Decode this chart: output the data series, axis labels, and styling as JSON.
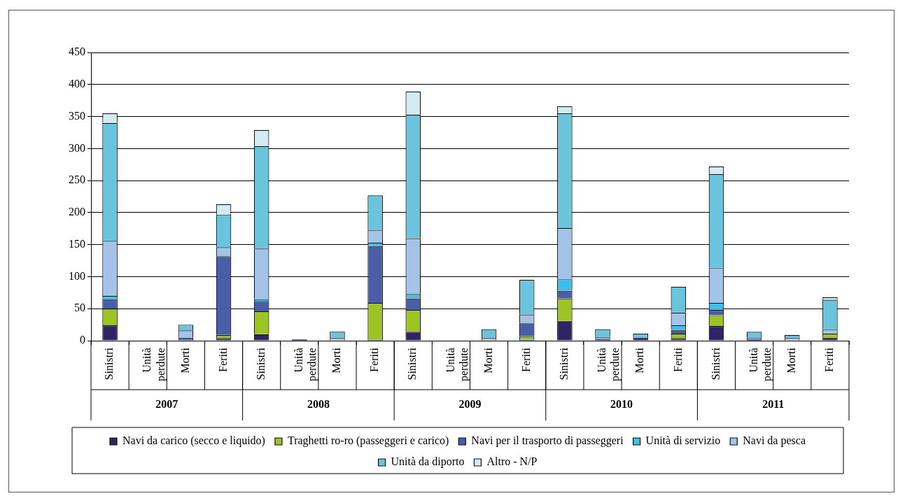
{
  "chart_data": {
    "type": "bar",
    "stacked": true,
    "categories": [
      "Sinistri",
      "Unità perdute",
      "Morti",
      "Feriti",
      "Sinistri",
      "Unità perdute",
      "Morti",
      "Feriti",
      "Sinistri",
      "Unità perdute",
      "Morti",
      "Feriti",
      "Sinistri",
      "Unità perdute",
      "Morti",
      "Feriti",
      "Sinistri",
      "Unità perdute",
      "Morti",
      "Feriti"
    ],
    "annotations": [
      "2007",
      "2008",
      "2009",
      "2010",
      "2011"
    ],
    "series": [
      {
        "name": "Navi da carico (secco e liquido)",
        "color": "#2e2466",
        "values": [
          24,
          0,
          0,
          4,
          10,
          2,
          0,
          1,
          14,
          0,
          0,
          1,
          31,
          1,
          5,
          4,
          23,
          2,
          0,
          5
        ]
      },
      {
        "name": "Traghetti ro-ro (passeggeri e carico)",
        "color": "#9bc424",
        "values": [
          26,
          0,
          0,
          5,
          36,
          0,
          0,
          58,
          34,
          0,
          0,
          6,
          35,
          0,
          0,
          7,
          17,
          0,
          0,
          6
        ]
      },
      {
        "name": "Navi per il trasporto di passeggeri",
        "color": "#4a5ea8",
        "values": [
          15,
          0,
          5,
          123,
          16,
          0,
          0,
          89,
          18,
          0,
          0,
          21,
          12,
          2,
          0,
          6,
          8,
          0,
          0,
          0
        ]
      },
      {
        "name": "Unità di servizio",
        "color": "#3cc0ea",
        "values": [
          5,
          0,
          0,
          0,
          3,
          0,
          0,
          5,
          7,
          0,
          0,
          0,
          18,
          0,
          0,
          7,
          11,
          0,
          0,
          0
        ]
      },
      {
        "name": "Navi da pesca",
        "color": "#a3c4e8",
        "values": [
          86,
          0,
          11,
          14,
          79,
          0,
          4,
          20,
          87,
          0,
          4,
          13,
          80,
          3,
          0,
          20,
          55,
          3,
          4,
          7
        ]
      },
      {
        "name": "Unità da diporto",
        "color": "#6ac5dc",
        "values": [
          184,
          0,
          9,
          51,
          160,
          0,
          10,
          54,
          193,
          0,
          14,
          54,
          179,
          12,
          6,
          40,
          146,
          9,
          5,
          46
        ]
      },
      {
        "name": "Altro - N/P",
        "color": "#d3eaf3",
        "values": [
          15,
          0,
          0,
          16,
          25,
          0,
          2,
          0,
          36,
          0,
          0,
          0,
          11,
          0,
          0,
          0,
          12,
          0,
          0,
          4
        ]
      }
    ],
    "ylim": [
      0,
      450
    ],
    "yticks": [
      0,
      50,
      100,
      150,
      200,
      250,
      300,
      350,
      400,
      450
    ],
    "grid": "y",
    "legend": "bottom"
  }
}
